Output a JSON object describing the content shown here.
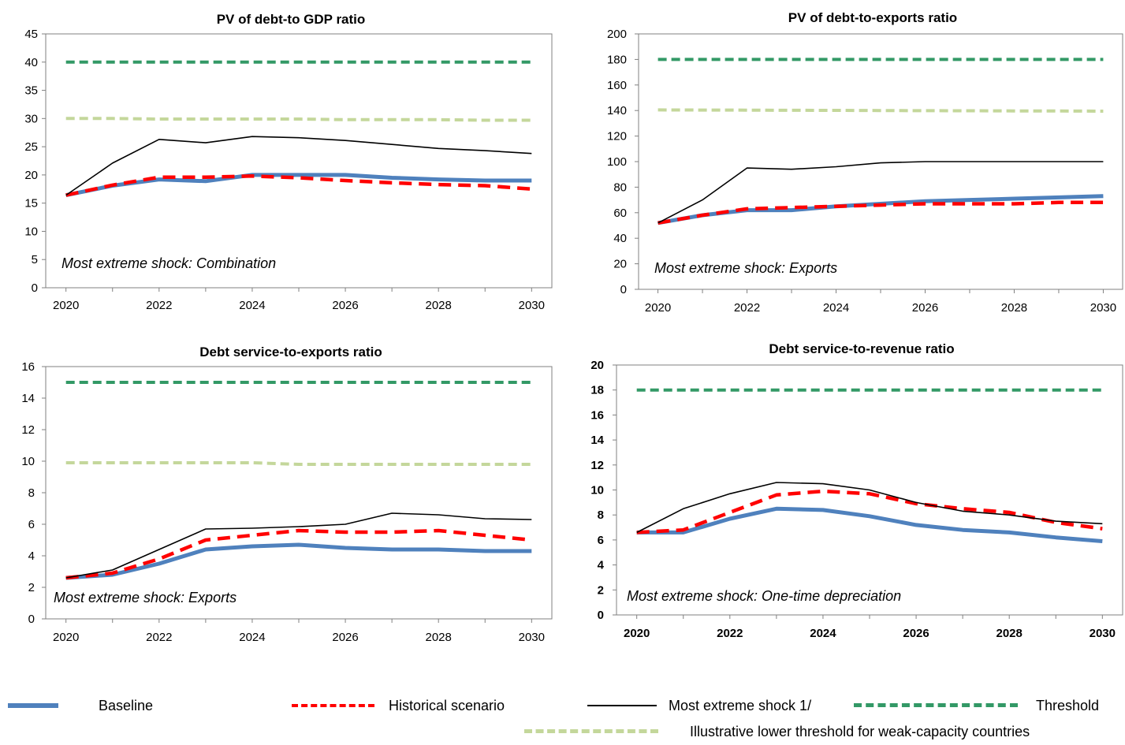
{
  "colors": {
    "baseline": "#4F81BD",
    "historical": "#FF0000",
    "shock": "#000000",
    "threshold": "#339966",
    "lower_threshold": "#C4D79B",
    "grid_axis": "#808080"
  },
  "legend": {
    "baseline": "Baseline",
    "historical": "Historical scenario",
    "shock": "Most extreme shock 1/",
    "threshold": "Threshold",
    "lower_threshold": "Illustrative lower threshold for weak-capacity countries"
  },
  "chart_data": [
    {
      "type": "line",
      "title": "PV of debt-to GDP ratio",
      "annotation": "Most extreme shock: Combination",
      "x": [
        2020,
        2021,
        2022,
        2023,
        2024,
        2025,
        2026,
        2027,
        2028,
        2029,
        2030
      ],
      "xticks": [
        "2020",
        "2022",
        "2024",
        "2026",
        "2028",
        "2030"
      ],
      "yticks": [
        "0",
        "5",
        "10",
        "15",
        "20",
        "25",
        "30",
        "35",
        "40",
        "45"
      ],
      "ylim": [
        0,
        45
      ],
      "series": [
        {
          "key": "lower_threshold",
          "values": [
            30,
            30,
            29.9,
            29.9,
            29.9,
            29.9,
            29.8,
            29.8,
            29.8,
            29.7,
            29.7
          ]
        },
        {
          "key": "threshold",
          "values": [
            40,
            40,
            40,
            40,
            40,
            40,
            40,
            40,
            40,
            40,
            40
          ]
        },
        {
          "key": "baseline",
          "values": [
            16.4,
            18.1,
            19.2,
            18.9,
            20.0,
            20.0,
            20.0,
            19.5,
            19.2,
            19.0,
            19.0
          ]
        },
        {
          "key": "historical",
          "values": [
            16.4,
            18.2,
            19.6,
            19.6,
            19.8,
            19.5,
            19.0,
            18.6,
            18.3,
            18.1,
            17.5
          ]
        },
        {
          "key": "shock",
          "values": [
            16.4,
            22.1,
            26.3,
            25.7,
            26.8,
            26.6,
            26.1,
            25.4,
            24.7,
            24.3,
            23.8
          ]
        }
      ]
    },
    {
      "type": "line",
      "title": "PV of debt-to-exports ratio",
      "annotation": "Most extreme shock: Exports",
      "x": [
        2020,
        2021,
        2022,
        2023,
        2024,
        2025,
        2026,
        2027,
        2028,
        2029,
        2030
      ],
      "xticks": [
        "2020",
        "2022",
        "2024",
        "2026",
        "2028",
        "2030"
      ],
      "yticks": [
        "0",
        "20",
        "40",
        "60",
        "80",
        "100",
        "120",
        "140",
        "160",
        "180",
        "200"
      ],
      "ylim": [
        0,
        200
      ],
      "series": [
        {
          "key": "lower_threshold",
          "values": [
            140.5,
            140.4,
            140.3,
            140.2,
            140.1,
            140,
            139.9,
            139.8,
            139.7,
            139.6,
            139.5
          ]
        },
        {
          "key": "threshold",
          "values": [
            180,
            180,
            180,
            180,
            180,
            180,
            180,
            180,
            180,
            180,
            180
          ]
        },
        {
          "key": "baseline",
          "values": [
            52,
            58,
            62,
            62,
            65,
            67,
            69,
            70,
            71,
            72,
            73
          ]
        },
        {
          "key": "historical",
          "values": [
            52,
            58,
            63,
            64,
            65,
            66,
            67,
            67,
            67,
            68,
            68
          ]
        },
        {
          "key": "shock",
          "values": [
            52,
            70,
            95,
            94,
            96,
            99,
            100,
            100,
            100,
            100,
            100
          ]
        }
      ]
    },
    {
      "type": "line",
      "title": "Debt service-to-exports ratio",
      "annotation": "Most extreme shock: Exports",
      "x": [
        2020,
        2021,
        2022,
        2023,
        2024,
        2025,
        2026,
        2027,
        2028,
        2029,
        2030
      ],
      "xticks": [
        "2020",
        "2022",
        "2024",
        "2026",
        "2028",
        "2030"
      ],
      "yticks": [
        "0",
        "2",
        "4",
        "6",
        "8",
        "10",
        "12",
        "14",
        "16"
      ],
      "ylim": [
        0,
        16
      ],
      "series": [
        {
          "key": "lower_threshold",
          "values": [
            9.9,
            9.9,
            9.9,
            9.9,
            9.9,
            9.8,
            9.8,
            9.8,
            9.8,
            9.8,
            9.8
          ]
        },
        {
          "key": "threshold",
          "values": [
            15,
            15,
            15,
            15,
            15,
            15,
            15,
            15,
            15,
            15,
            15
          ]
        },
        {
          "key": "baseline",
          "values": [
            2.6,
            2.8,
            3.5,
            4.4,
            4.6,
            4.7,
            4.5,
            4.4,
            4.4,
            4.3,
            4.3
          ]
        },
        {
          "key": "historical",
          "values": [
            2.6,
            2.9,
            3.8,
            5.0,
            5.3,
            5.6,
            5.5,
            5.5,
            5.6,
            5.3,
            5.0
          ]
        },
        {
          "key": "shock",
          "values": [
            2.6,
            3.1,
            4.4,
            5.7,
            5.75,
            5.85,
            6.0,
            6.7,
            6.6,
            6.35,
            6.3
          ]
        }
      ]
    },
    {
      "type": "line",
      "title": "Debt service-to-revenue ratio",
      "annotation": "Most extreme shock: One-time depreciation",
      "bold_ticks": true,
      "x": [
        2020,
        2021,
        2022,
        2023,
        2024,
        2025,
        2026,
        2027,
        2028,
        2029,
        2030
      ],
      "xticks": [
        "2020",
        "2022",
        "2024",
        "2026",
        "2028",
        "2030"
      ],
      "yticks": [
        "0",
        "2",
        "4",
        "6",
        "8",
        "10",
        "12",
        "14",
        "16",
        "18",
        "20"
      ],
      "ylim": [
        0,
        20
      ],
      "series": [
        {
          "key": "threshold",
          "values": [
            18,
            18,
            18,
            18,
            18,
            18,
            18,
            18,
            18,
            18,
            18
          ]
        },
        {
          "key": "baseline",
          "values": [
            6.6,
            6.6,
            7.7,
            8.5,
            8.4,
            7.9,
            7.2,
            6.8,
            6.6,
            6.2,
            5.9
          ]
        },
        {
          "key": "historical",
          "values": [
            6.6,
            6.8,
            8.2,
            9.6,
            9.9,
            9.7,
            8.9,
            8.5,
            8.2,
            7.4,
            6.9
          ]
        },
        {
          "key": "shock",
          "values": [
            6.6,
            8.5,
            9.7,
            10.6,
            10.5,
            10.0,
            9.0,
            8.3,
            8.0,
            7.5,
            7.3
          ]
        }
      ]
    }
  ]
}
